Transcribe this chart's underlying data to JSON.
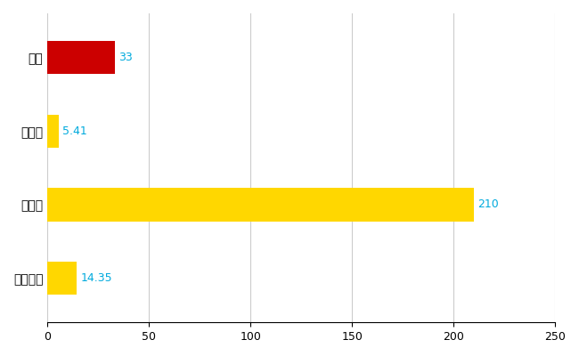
{
  "categories": [
    "東区",
    "県平均",
    "県最大",
    "全国平均"
  ],
  "values": [
    33,
    5.41,
    210,
    14.35
  ],
  "bar_colors": [
    "#CC0000",
    "#FFD700",
    "#FFD700",
    "#FFD700"
  ],
  "value_labels": [
    "33",
    "5.41",
    "210",
    "14.35"
  ],
  "xlim": [
    0,
    250
  ],
  "xticks": [
    0,
    50,
    100,
    150,
    200,
    250
  ],
  "background_color": "#ffffff",
  "grid_color": "#cccccc",
  "label_color": "#00AADD",
  "bar_height": 0.45
}
